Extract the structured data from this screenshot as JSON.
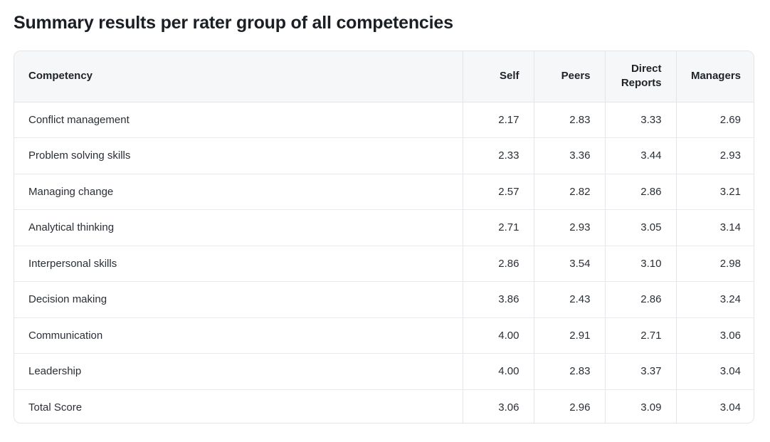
{
  "title": "Summary results per rater group of all competencies",
  "table": {
    "headers": {
      "competency": "Competency",
      "self": "Self",
      "peers": "Peers",
      "direct_reports_line1": "Direct",
      "direct_reports_line2": "Reports",
      "managers": "Managers"
    },
    "rows": [
      {
        "competency": "Conflict management",
        "self": "2.17",
        "peers": "2.83",
        "direct_reports": "3.33",
        "managers": "2.69"
      },
      {
        "competency": "Problem solving skills",
        "self": "2.33",
        "peers": "3.36",
        "direct_reports": "3.44",
        "managers": "2.93"
      },
      {
        "competency": "Managing change",
        "self": "2.57",
        "peers": "2.82",
        "direct_reports": "2.86",
        "managers": "3.21"
      },
      {
        "competency": "Analytical thinking",
        "self": "2.71",
        "peers": "2.93",
        "direct_reports": "3.05",
        "managers": "3.14"
      },
      {
        "competency": "Interpersonal skills",
        "self": "2.86",
        "peers": "3.54",
        "direct_reports": "3.10",
        "managers": "2.98"
      },
      {
        "competency": "Decision making",
        "self": "3.86",
        "peers": "2.43",
        "direct_reports": "2.86",
        "managers": "3.24"
      },
      {
        "competency": "Communication",
        "self": "4.00",
        "peers": "2.91",
        "direct_reports": "2.71",
        "managers": "3.06"
      },
      {
        "competency": "Leadership",
        "self": "4.00",
        "peers": "2.83",
        "direct_reports": "3.37",
        "managers": "3.04"
      },
      {
        "competency": "Total Score",
        "self": "3.06",
        "peers": "2.96",
        "direct_reports": "3.09",
        "managers": "3.04"
      }
    ]
  }
}
